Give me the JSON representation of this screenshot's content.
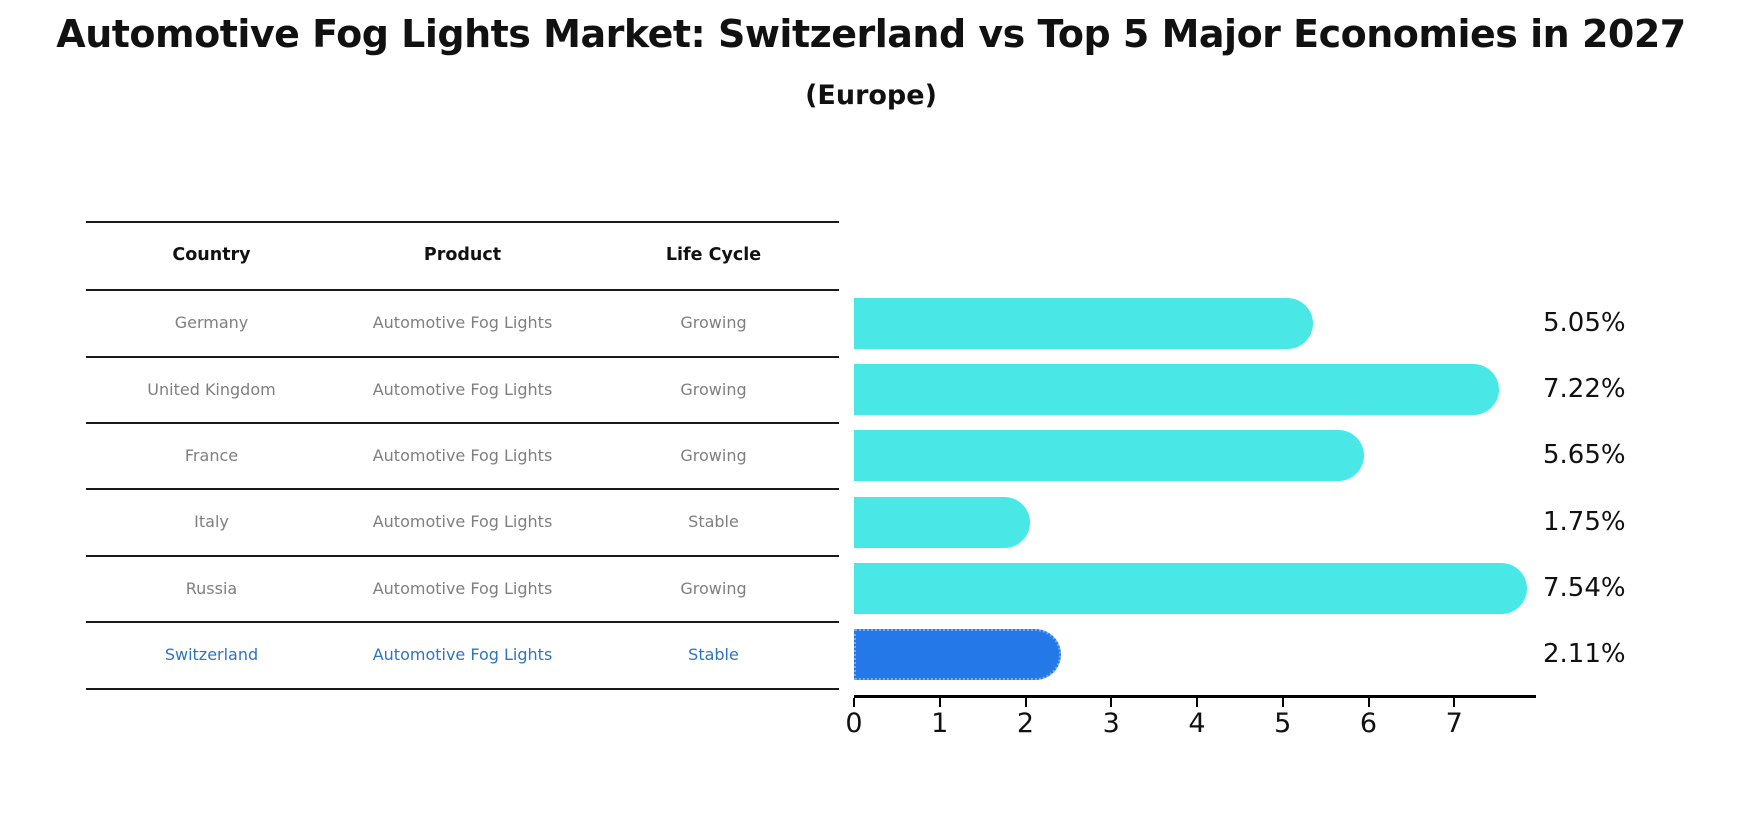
{
  "header": {
    "title": "Automotive Fog Lights Market: Switzerland vs Top 5 Major Economies in 2027",
    "subtitle": "(Europe)"
  },
  "table": {
    "headers": [
      "Country",
      "Product",
      "Life Cycle"
    ],
    "rows": [
      [
        "Germany",
        "Automotive Fog Lights",
        "Growing"
      ],
      [
        "United Kingdom",
        "Automotive Fog Lights",
        "Growing"
      ],
      [
        "France",
        "Automotive Fog Lights",
        "Growing"
      ],
      [
        "Italy",
        "Automotive Fog Lights",
        "Stable"
      ],
      [
        "Russia",
        "Automotive Fog Lights",
        "Growing"
      ],
      [
        "Switzerland",
        "Automotive Fog Lights",
        "Stable"
      ]
    ],
    "highlight_row_index": 5
  },
  "chart_data": {
    "type": "bar",
    "orientation": "horizontal",
    "categories": [
      "Germany",
      "United Kingdom",
      "France",
      "Italy",
      "Russia",
      "Switzerland"
    ],
    "values": [
      5.05,
      7.22,
      5.65,
      1.75,
      7.54,
      2.11
    ],
    "value_labels": [
      "5.05%",
      "7.22%",
      "5.65%",
      "1.75%",
      "7.54%",
      "2.11%"
    ],
    "xlim": [
      0,
      7.93
    ],
    "x_ticks": [
      0,
      1,
      2,
      3,
      4,
      5,
      6,
      7
    ],
    "x_tick_labels": [
      "0",
      "1",
      "2",
      "3",
      "4",
      "5",
      "6",
      "7"
    ],
    "grid": false,
    "legend": false,
    "bar_color": "#4AE7E7",
    "highlight_index": 5,
    "highlight_color": "#2478E8",
    "highlight_border_color": "#74AEF0",
    "highlight_text_color": "#2E74C0"
  }
}
